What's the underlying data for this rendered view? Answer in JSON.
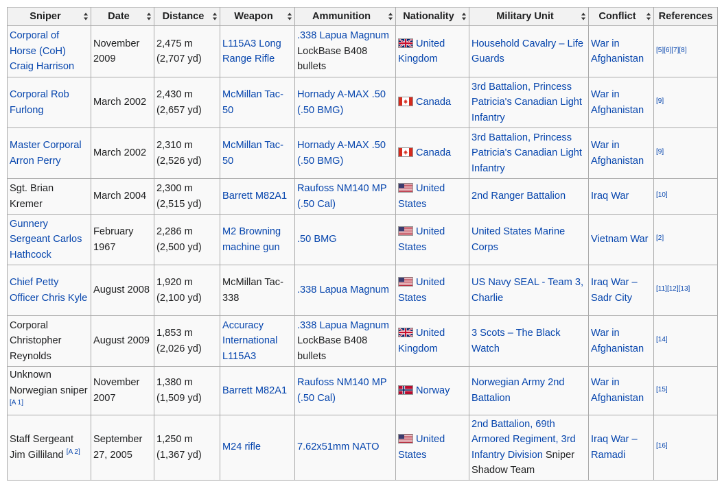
{
  "headers": [
    "Sniper",
    "Date",
    "Distance",
    "Weapon",
    "Ammunition",
    "Nationality",
    "Military Unit",
    "Conflict",
    "References"
  ],
  "rows": [
    {
      "sniper": "Corporal of Horse (CoH) Craig Harrison",
      "sniper_link": true,
      "sniper_note": "",
      "date": "November 2009",
      "distance_m": "2,475 m",
      "distance_yd": "(2,707 yd)",
      "weapon": "L115A3 Long Range Rifle",
      "weapon_link": true,
      "ammo": ".338 Lapua Magnum",
      "ammo_suffix": "LockBase B408 bullets",
      "flag": "uk-flag-icon",
      "nationality": "United Kingdom",
      "unit": "Household Cavalry – Life Guards",
      "unit_suffix": "",
      "conflict": "War in Afghanistan",
      "refs": "[5][6][7][8]"
    },
    {
      "sniper": "Corporal Rob Furlong",
      "sniper_link": true,
      "sniper_note": "",
      "date": "March 2002",
      "distance_m": "2,430 m",
      "distance_yd": "(2,657 yd)",
      "weapon": "McMillan Tac-50",
      "weapon_link": true,
      "ammo": "Hornady A-MAX .50 (.50 BMG)",
      "ammo_suffix": "",
      "flag": "canada-flag-icon",
      "nationality": "Canada",
      "unit": "3rd Battalion, Princess Patricia's Canadian Light Infantry",
      "unit_suffix": "",
      "conflict": "War in Afghanistan",
      "refs": "[9]"
    },
    {
      "sniper": "Master Corporal Arron Perry",
      "sniper_link": true,
      "sniper_note": "",
      "date": "March 2002",
      "distance_m": "2,310 m",
      "distance_yd": "(2,526 yd)",
      "weapon": "McMillan Tac-50",
      "weapon_link": true,
      "ammo": "Hornady A-MAX .50 (.50 BMG)",
      "ammo_suffix": "",
      "flag": "canada-flag-icon",
      "nationality": "Canada",
      "unit": "3rd Battalion, Princess Patricia's Canadian Light Infantry",
      "unit_suffix": "",
      "conflict": "War in Afghanistan",
      "refs": "[9]"
    },
    {
      "sniper": "Sgt. Brian Kremer",
      "sniper_link": false,
      "sniper_note": "",
      "date": "March 2004",
      "distance_m": "2,300 m",
      "distance_yd": "(2,515 yd)",
      "weapon": "Barrett M82A1",
      "weapon_link": true,
      "ammo": "Raufoss NM140 MP (.50 Cal)",
      "ammo_suffix": "",
      "flag": "us-flag-icon",
      "nationality": "United States",
      "unit": "2nd Ranger Battalion",
      "unit_suffix": "",
      "conflict": "Iraq War",
      "refs": "[10]"
    },
    {
      "sniper": "Gunnery Sergeant Carlos Hathcock",
      "sniper_link": true,
      "sniper_note": "",
      "date": "February 1967",
      "distance_m": "2,286 m",
      "distance_yd": "(2,500 yd)",
      "weapon": "M2 Browning machine gun",
      "weapon_link": true,
      "ammo": ".50 BMG",
      "ammo_suffix": "",
      "flag": "us-flag-icon",
      "nationality": "United States",
      "unit": "United States Marine Corps",
      "unit_suffix": "",
      "conflict": "Vietnam War",
      "refs": "[2]"
    },
    {
      "sniper": "Chief Petty Officer Chris Kyle",
      "sniper_link": true,
      "sniper_note": "",
      "date": "August 2008",
      "distance_m": "1,920 m",
      "distance_yd": "(2,100 yd)",
      "weapon": "McMillan Tac-338",
      "weapon_link": false,
      "ammo": ".338 Lapua Magnum",
      "ammo_suffix": "",
      "flag": "us-flag-icon",
      "nationality": "United States",
      "unit": "US Navy SEAL - Team 3, Charlie",
      "unit_suffix": "",
      "conflict": "Iraq War – Sadr City",
      "refs": "[11][12][13]"
    },
    {
      "sniper": "Corporal Christopher Reynolds",
      "sniper_link": false,
      "sniper_note": "",
      "date": "August 2009",
      "distance_m": "1,853 m",
      "distance_yd": "(2,026 yd)",
      "weapon": "Accuracy International L115A3",
      "weapon_link": true,
      "ammo": ".338 Lapua Magnum",
      "ammo_suffix": "LockBase B408 bullets",
      "flag": "uk-flag-icon",
      "nationality": "United Kingdom",
      "unit": "3 Scots – The Black Watch",
      "unit_suffix": "",
      "conflict": "War in Afghanistan",
      "refs": "[14]"
    },
    {
      "sniper": "Unknown Norwegian sniper",
      "sniper_link": false,
      "sniper_note": "[A 1]",
      "note_below": true,
      "date": "November 2007",
      "distance_m": "1,380 m",
      "distance_yd": "(1,509 yd)",
      "weapon": "Barrett M82A1",
      "weapon_link": true,
      "ammo": "Raufoss NM140 MP (.50 Cal)",
      "ammo_suffix": "",
      "flag": "norway-flag-icon",
      "nationality": "Norway",
      "unit": "Norwegian Army 2nd Battalion",
      "unit_suffix": "",
      "conflict": "War in Afghanistan",
      "refs": "[15]"
    },
    {
      "sniper": "Staff Sergeant Jim Gilliland",
      "sniper_link": false,
      "sniper_note": "[A 2]",
      "date": "September 27, 2005",
      "distance_m": "1,250 m",
      "distance_yd": "(1,367 yd)",
      "weapon": "M24 rifle",
      "weapon_link": true,
      "ammo": "7.62x51mm NATO",
      "ammo_suffix": "",
      "flag": "us-flag-icon",
      "nationality": "United States",
      "unit": "2nd Battalion, 69th Armored Regiment, 3rd Infantry Division",
      "unit_suffix": "Sniper Shadow Team",
      "conflict": "Iraq War – Ramadi",
      "refs": "[16]"
    }
  ],
  "colors": {
    "link": "#0645ad",
    "header_bg": "#f2f2f2",
    "cell_bg": "#f9f9f9",
    "border": "#aaaaaa",
    "text": "#202122"
  }
}
